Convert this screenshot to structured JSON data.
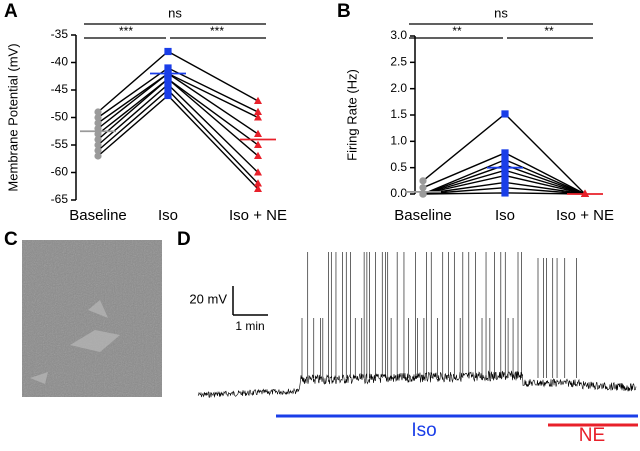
{
  "chart_data": [
    {
      "type": "paired-dot",
      "panel": "A",
      "ylabel": "Membrane Potential (mV)",
      "categories": [
        "Baseline",
        "Iso",
        "Iso + NE"
      ],
      "ylim": [
        -65,
        -35
      ],
      "yticks": [
        -35,
        -40,
        -45,
        -50,
        -55,
        -60,
        -65
      ],
      "annotations": [
        "ns",
        "***",
        "***"
      ],
      "groups": [
        {
          "marker": "circle",
          "color": "#9a9a9a",
          "mean": -52.5,
          "values": [
            -49,
            -50,
            -51,
            -52,
            -53,
            -54,
            -55,
            -56,
            -57
          ]
        },
        {
          "marker": "square",
          "color": "#1a3ee8",
          "mean": -42,
          "values": [
            -38,
            -41,
            -42,
            -42,
            -43,
            -43,
            -44,
            -45,
            -46
          ]
        },
        {
          "marker": "triangle",
          "color": "#e8202a",
          "mean": -54,
          "values": [
            -47,
            -49,
            -50,
            -53,
            -55,
            -57,
            -60,
            -62,
            -63
          ]
        }
      ]
    },
    {
      "type": "paired-dot",
      "panel": "B",
      "ylabel": "Firing Rate (Hz)",
      "categories": [
        "Baseline",
        "Iso",
        "Iso + NE"
      ],
      "ylim": [
        0,
        3
      ],
      "yticks": [
        {
          "value": 0,
          "label": "0.0"
        },
        0.5,
        {
          "value": 1,
          "label": "1.0"
        },
        1.5,
        {
          "value": 2,
          "label": "2.0"
        },
        2.5,
        {
          "value": 3,
          "label": "3.0"
        }
      ],
      "annotations": [
        "ns",
        "**",
        "**"
      ],
      "groups": [
        {
          "marker": "circle",
          "color": "#9a9a9a",
          "mean": 0.04,
          "values": [
            0.25,
            0.12,
            0,
            0,
            0,
            0,
            0,
            0,
            0
          ]
        },
        {
          "marker": "square",
          "color": "#1a3ee8",
          "mean": 0.5,
          "values": [
            1.52,
            0.78,
            0.65,
            0.55,
            0.45,
            0.35,
            0.22,
            0.12,
            0.02
          ]
        },
        {
          "marker": "triangle",
          "color": "#e8202a",
          "mean": 0,
          "values": [
            0,
            0,
            0,
            0,
            0,
            0,
            0,
            0,
            0
          ]
        }
      ]
    }
  ],
  "panel_c": {
    "label": "C"
  },
  "panel_d": {
    "label": "D",
    "scale_y": "20 mV",
    "scale_x": "1 min",
    "bars": [
      "Iso",
      "NE"
    ]
  }
}
